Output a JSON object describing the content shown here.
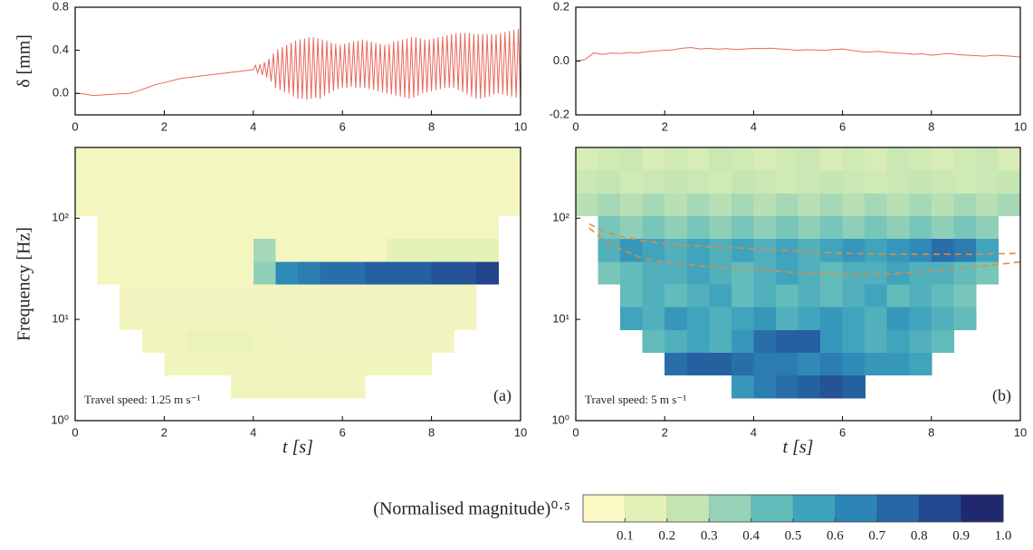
{
  "chart_data": [
    {
      "type": "line",
      "ylabel": "δ [mm]",
      "color": "#e8675a",
      "xlim": [
        0,
        10
      ],
      "ylim": [
        -0.2,
        0.8
      ],
      "xticks": [
        0,
        2,
        4,
        6,
        8,
        10
      ],
      "yticks": [
        {
          "value": 0,
          "label": "0.0"
        },
        0.4,
        0.8
      ],
      "x": [
        0,
        0.2,
        0.4,
        0.6,
        0.8,
        1.0,
        1.2,
        1.4,
        1.6,
        1.8,
        2.0,
        2.2,
        2.4,
        2.6,
        2.8,
        3.0,
        3.2,
        3.4,
        3.6,
        3.8,
        4.0,
        4.05,
        4.1,
        4.15,
        4.2,
        4.25,
        4.3,
        4.35,
        4.4,
        4.45,
        4.5,
        4.55,
        4.6,
        4.65,
        4.7,
        4.75,
        4.8,
        4.85,
        4.9,
        4.95,
        5.0,
        5.05,
        5.1,
        5.15,
        5.2,
        5.25,
        5.3,
        5.35,
        5.4,
        5.45,
        5.5,
        5.55,
        5.6,
        5.65,
        5.7,
        5.75,
        5.8,
        5.85,
        5.9,
        5.95,
        6.0,
        6.05,
        6.1,
        6.15,
        6.2,
        6.25,
        6.3,
        6.35,
        6.4,
        6.45,
        6.5,
        6.55,
        6.6,
        6.65,
        6.7,
        6.75,
        6.8,
        6.85,
        6.9,
        6.95,
        7.0,
        7.05,
        7.1,
        7.15,
        7.2,
        7.25,
        7.3,
        7.35,
        7.4,
        7.45,
        7.5,
        7.55,
        7.6,
        7.65,
        7.7,
        7.75,
        7.8,
        7.85,
        7.9,
        7.95,
        8.0,
        8.05,
        8.1,
        8.15,
        8.2,
        8.25,
        8.3,
        8.35,
        8.4,
        8.45,
        8.5,
        8.55,
        8.6,
        8.65,
        8.7,
        8.75,
        8.8,
        8.85,
        8.9,
        8.95,
        9.0,
        9.05,
        9.1,
        9.15,
        9.2,
        9.25,
        9.3,
        9.35,
        9.4,
        9.45,
        9.5,
        9.55,
        9.6,
        9.65,
        9.7,
        9.75,
        9.8,
        9.85,
        9.9,
        9.95,
        10.0
      ],
      "values": [
        0,
        -0.005,
        -0.02,
        -0.015,
        -0.01,
        -0.005,
        0.0,
        0.02,
        0.05,
        0.08,
        0.1,
        0.12,
        0.14,
        0.15,
        0.16,
        0.17,
        0.18,
        0.19,
        0.2,
        0.21,
        0.22,
        0.26,
        0.19,
        0.27,
        0.17,
        0.29,
        0.15,
        0.32,
        0.11,
        0.37,
        0.05,
        0.41,
        0.03,
        0.43,
        0.01,
        0.45,
        0.0,
        0.47,
        -0.03,
        0.49,
        -0.05,
        0.5,
        -0.05,
        0.51,
        -0.06,
        0.52,
        -0.05,
        0.52,
        -0.04,
        0.51,
        -0.05,
        0.5,
        -0.02,
        0.49,
        0.0,
        0.47,
        0.02,
        0.46,
        0.04,
        0.45,
        0.05,
        0.46,
        0.05,
        0.47,
        0.06,
        0.48,
        0.05,
        0.49,
        0.05,
        0.5,
        0.05,
        0.49,
        0.04,
        0.48,
        0.03,
        0.47,
        0.02,
        0.46,
        0.01,
        0.45,
        0.0,
        0.46,
        -0.01,
        0.48,
        -0.02,
        0.49,
        -0.03,
        0.5,
        -0.04,
        0.51,
        -0.05,
        0.52,
        -0.04,
        0.52,
        -0.02,
        0.51,
        0.0,
        0.5,
        0.01,
        0.5,
        0.02,
        0.51,
        0.03,
        0.52,
        0.04,
        0.53,
        0.05,
        0.54,
        0.05,
        0.55,
        0.05,
        0.56,
        0.03,
        0.56,
        0.01,
        0.56,
        -0.01,
        0.56,
        -0.03,
        0.55,
        -0.05,
        0.55,
        -0.05,
        0.55,
        -0.04,
        0.55,
        -0.03,
        0.55,
        -0.01,
        0.55,
        0.0,
        0.56,
        -0.01,
        0.57,
        -0.02,
        0.58,
        -0.03,
        0.59,
        -0.04,
        0.6,
        -0.05
      ]
    },
    {
      "type": "line",
      "color": "#e8675a",
      "xlim": [
        0,
        10
      ],
      "ylim": [
        -0.2,
        0.2
      ],
      "xticks": [
        0,
        2,
        4,
        6,
        8,
        10
      ],
      "yticks": [
        -0.2,
        {
          "value": 0,
          "label": "0.0"
        },
        0.2
      ],
      "x": [
        0,
        0.2,
        0.4,
        0.6,
        0.8,
        1.0,
        1.2,
        1.4,
        1.6,
        1.8,
        2.0,
        2.2,
        2.4,
        2.6,
        2.8,
        3.0,
        3.2,
        3.4,
        3.6,
        3.8,
        4.0,
        4.2,
        4.4,
        4.6,
        4.8,
        5.0,
        5.2,
        5.4,
        5.6,
        5.8,
        6.0,
        6.2,
        6.4,
        6.6,
        6.8,
        7.0,
        7.2,
        7.4,
        7.6,
        7.8,
        8.0,
        8.2,
        8.4,
        8.6,
        8.8,
        9.0,
        9.2,
        9.4,
        9.6,
        9.8,
        10.0
      ],
      "values": [
        0.0,
        0.005,
        0.03,
        0.025,
        0.03,
        0.028,
        0.032,
        0.03,
        0.035,
        0.038,
        0.04,
        0.042,
        0.048,
        0.05,
        0.045,
        0.047,
        0.044,
        0.046,
        0.043,
        0.045,
        0.047,
        0.046,
        0.048,
        0.045,
        0.043,
        0.04,
        0.042,
        0.041,
        0.04,
        0.043,
        0.045,
        0.04,
        0.035,
        0.033,
        0.036,
        0.032,
        0.03,
        0.028,
        0.025,
        0.027,
        0.022,
        0.025,
        0.028,
        0.024,
        0.022,
        0.02,
        0.018,
        0.022,
        0.02,
        0.018,
        0.015
      ]
    },
    {
      "type": "heatmap",
      "ylabel": "Frequency [Hz]",
      "xlabel": "t [s]",
      "annotation": "Travel speed: 1.25 m s⁻¹",
      "panel_label": "(a)",
      "yscale": "log",
      "xlim": [
        0,
        10
      ],
      "ylim": [
        1,
        500
      ],
      "xticks": [
        0,
        2,
        4,
        6,
        8,
        10
      ],
      "yticks": [
        {
          "value": 1,
          "label": "10⁰"
        },
        {
          "value": 10,
          "label": "10¹"
        },
        {
          "value": 100,
          "label": "10²"
        }
      ],
      "x": [
        0.25,
        0.75,
        1.25,
        1.75,
        2.25,
        2.75,
        3.25,
        3.75,
        4.25,
        4.75,
        5.25,
        5.75,
        6.25,
        6.75,
        7.25,
        7.75,
        8.25,
        8.75,
        9.25,
        9.75
      ],
      "y": [
        1.3,
        2.18,
        3.65,
        6.13,
        10.3,
        17.3,
        29.0,
        48.7,
        81.8,
        137,
        230,
        387
      ],
      "z": [
        [
          null,
          null,
          null,
          null,
          null,
          null,
          null,
          null,
          null,
          null,
          null,
          null,
          null,
          null,
          null,
          null,
          null,
          null,
          null,
          null
        ],
        [
          null,
          null,
          null,
          null,
          null,
          null,
          null,
          0.05,
          0.06,
          0.06,
          0.06,
          0.06,
          0.05,
          null,
          null,
          null,
          null,
          null,
          null,
          null
        ],
        [
          null,
          null,
          null,
          null,
          0.05,
          0.05,
          0.05,
          0.05,
          0.05,
          0.05,
          0.05,
          0.05,
          0.05,
          0.05,
          0.05,
          0.05,
          null,
          null,
          null,
          null
        ],
        [
          null,
          null,
          null,
          0.05,
          0.05,
          0.08,
          0.08,
          0.07,
          0.05,
          0.04,
          0.04,
          0.04,
          0.04,
          0.04,
          0.04,
          0.04,
          0.04,
          null,
          null,
          null
        ],
        [
          null,
          null,
          0.04,
          0.04,
          0.04,
          0.04,
          0.04,
          0.04,
          0.04,
          0.04,
          0.04,
          0.04,
          0.04,
          0.04,
          0.04,
          0.04,
          0.04,
          0.04,
          null,
          null
        ],
        [
          null,
          null,
          0.04,
          0.04,
          0.04,
          0.04,
          0.04,
          0.04,
          0.04,
          0.04,
          0.04,
          0.04,
          0.04,
          0.04,
          0.04,
          0.04,
          0.04,
          0.04,
          null,
          null
        ],
        [
          null,
          0.03,
          0.03,
          0.03,
          0.03,
          0.03,
          0.03,
          0.03,
          0.35,
          0.65,
          0.7,
          0.75,
          0.75,
          0.8,
          0.8,
          0.8,
          0.85,
          0.85,
          0.9,
          null
        ],
        [
          null,
          0.03,
          0.03,
          0.03,
          0.03,
          0.03,
          0.03,
          0.03,
          0.3,
          0.03,
          0.03,
          0.03,
          0.03,
          0.03,
          0.1,
          0.1,
          0.1,
          0.1,
          0.1,
          null
        ],
        [
          null,
          0.03,
          0.03,
          0.03,
          0.03,
          0.03,
          0.03,
          0.03,
          0.03,
          0.03,
          0.03,
          0.03,
          0.03,
          0.03,
          0.03,
          0.03,
          0.03,
          0.03,
          0.03,
          null
        ],
        [
          0.03,
          0.03,
          0.03,
          0.03,
          0.03,
          0.03,
          0.03,
          0.03,
          0.03,
          0.03,
          0.03,
          0.03,
          0.03,
          0.03,
          0.03,
          0.03,
          0.03,
          0.03,
          0.03,
          0.03
        ],
        [
          0.03,
          0.03,
          0.03,
          0.03,
          0.03,
          0.03,
          0.03,
          0.03,
          0.03,
          0.03,
          0.03,
          0.03,
          0.03,
          0.03,
          0.03,
          0.03,
          0.03,
          0.03,
          0.03,
          0.03
        ],
        [
          0.03,
          0.03,
          0.03,
          0.03,
          0.03,
          0.03,
          0.03,
          0.03,
          0.03,
          0.03,
          0.03,
          0.03,
          0.03,
          0.03,
          0.03,
          0.03,
          0.03,
          0.03,
          0.03,
          0.03
        ]
      ]
    },
    {
      "type": "heatmap",
      "xlabel": "t [s]",
      "annotation": "Travel speed: 5 m s⁻¹",
      "panel_label": "(b)",
      "yscale": "log",
      "xlim": [
        0,
        10
      ],
      "ylim": [
        1,
        500
      ],
      "xticks": [
        0,
        2,
        4,
        6,
        8,
        10
      ],
      "yticks": [
        {
          "value": 1,
          "label": "10⁰"
        },
        {
          "value": 10,
          "label": "10¹"
        },
        {
          "value": 100,
          "label": "10²"
        }
      ],
      "x": [
        0.25,
        0.75,
        1.25,
        1.75,
        2.25,
        2.75,
        3.25,
        3.75,
        4.25,
        4.75,
        5.25,
        5.75,
        6.25,
        6.75,
        7.25,
        7.75,
        8.25,
        8.75,
        9.25,
        9.75
      ],
      "y": [
        1.3,
        2.18,
        3.65,
        6.13,
        10.3,
        17.3,
        29.0,
        48.7,
        81.8,
        137,
        230,
        387
      ],
      "z": [
        [
          null,
          null,
          null,
          null,
          null,
          null,
          null,
          null,
          null,
          null,
          null,
          null,
          null,
          null,
          null,
          null,
          null,
          null,
          null,
          null
        ],
        [
          null,
          null,
          null,
          null,
          null,
          null,
          null,
          0.6,
          0.7,
          0.75,
          0.8,
          0.85,
          0.8,
          null,
          null,
          null,
          null,
          null,
          null,
          null
        ],
        [
          null,
          null,
          null,
          null,
          0.75,
          0.8,
          0.8,
          0.75,
          0.7,
          0.7,
          0.65,
          0.7,
          0.65,
          0.6,
          0.6,
          0.55,
          null,
          null,
          null,
          null
        ],
        [
          null,
          null,
          null,
          0.45,
          0.5,
          0.55,
          0.5,
          0.6,
          0.75,
          0.8,
          0.8,
          0.6,
          0.55,
          0.5,
          0.55,
          0.5,
          0.45,
          null,
          null,
          null
        ],
        [
          null,
          null,
          0.55,
          0.5,
          0.6,
          0.55,
          0.5,
          0.55,
          0.6,
          0.5,
          0.55,
          0.6,
          0.55,
          0.5,
          0.6,
          0.55,
          0.5,
          0.45,
          null,
          null
        ],
        [
          null,
          null,
          0.45,
          0.5,
          0.45,
          0.5,
          0.55,
          0.45,
          0.5,
          0.45,
          0.5,
          0.45,
          0.5,
          0.55,
          0.45,
          0.5,
          0.45,
          0.4,
          null,
          null
        ],
        [
          null,
          0.4,
          0.45,
          0.5,
          0.5,
          0.55,
          0.5,
          0.45,
          0.5,
          0.55,
          0.5,
          0.45,
          0.5,
          0.5,
          0.55,
          0.5,
          0.5,
          0.45,
          0.4,
          null
        ],
        [
          null,
          0.5,
          0.6,
          0.55,
          0.5,
          0.55,
          0.5,
          0.55,
          0.5,
          0.55,
          0.5,
          0.55,
          0.6,
          0.55,
          0.6,
          0.65,
          0.75,
          0.7,
          0.55,
          null
        ],
        [
          null,
          0.4,
          0.35,
          0.4,
          0.35,
          0.4,
          0.35,
          0.4,
          0.35,
          0.4,
          0.35,
          0.4,
          0.35,
          0.4,
          0.35,
          0.4,
          0.35,
          0.4,
          0.35,
          null
        ],
        [
          0.25,
          0.3,
          0.25,
          0.3,
          0.25,
          0.3,
          0.25,
          0.3,
          0.25,
          0.3,
          0.25,
          0.3,
          0.25,
          0.3,
          0.25,
          0.3,
          0.25,
          0.3,
          0.25,
          0.3
        ],
        [
          0.2,
          0.22,
          0.18,
          0.2,
          0.22,
          0.2,
          0.18,
          0.22,
          0.2,
          0.18,
          0.2,
          0.22,
          0.2,
          0.18,
          0.2,
          0.22,
          0.2,
          0.18,
          0.2,
          0.22
        ],
        [
          0.15,
          0.18,
          0.2,
          0.15,
          0.18,
          0.15,
          0.2,
          0.18,
          0.15,
          0.18,
          0.2,
          0.15,
          0.18,
          0.15,
          0.2,
          0.18,
          0.15,
          0.18,
          0.2,
          0.15
        ]
      ],
      "lines": [
        {
          "color": "#e08a45",
          "dash": true,
          "x": [
            0.3,
            0.6,
            1,
            1.5,
            2,
            3,
            4,
            5,
            6,
            7,
            8,
            9,
            10
          ],
          "values": [
            88,
            75,
            66,
            60,
            56,
            52,
            50,
            47,
            45,
            44,
            44,
            44,
            45
          ]
        },
        {
          "color": "#e08a45",
          "dash": true,
          "x": [
            0.3,
            0.6,
            1,
            1.5,
            2,
            3,
            4,
            5,
            6,
            7,
            8,
            9,
            10
          ],
          "values": [
            80,
            62,
            50,
            40,
            37,
            33,
            31,
            29,
            28,
            28,
            30,
            33,
            37
          ]
        }
      ]
    },
    {
      "type": "colorbar",
      "title": "(Normalised magnitude)⁰·⁵",
      "clim": [
        0,
        1
      ],
      "ticks": [
        0.1,
        0.2,
        0.3,
        0.4,
        0.5,
        0.6,
        0.7,
        0.8,
        0.9,
        {
          "value": 1,
          "label": "1.0"
        }
      ],
      "colors": [
        "#fbf8c4",
        "#e2f1b6",
        "#c4e5b3",
        "#97d2b8",
        "#63bdbb",
        "#3ea3bd",
        "#2c85b6",
        "#2667a6",
        "#23488f",
        "#20296d"
      ]
    }
  ]
}
